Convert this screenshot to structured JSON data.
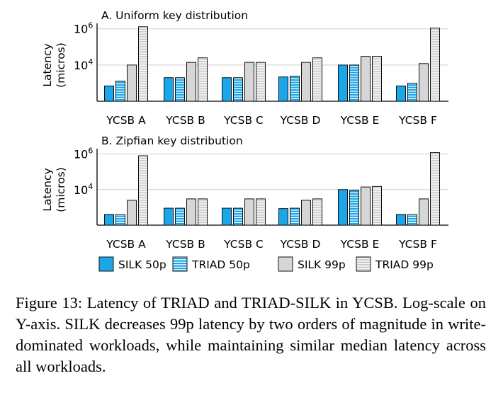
{
  "chart_data": [
    {
      "type": "bar",
      "title": "A. Uniform key distribution",
      "ylabel": "Latency (micros)",
      "ylabel_lines": [
        "Latency",
        "(micros)"
      ],
      "yscale": "log",
      "ylim": [
        100,
        2000000
      ],
      "yticks": [
        {
          "value": 10000,
          "base": "10",
          "exp": "4"
        },
        {
          "value": 1000000,
          "base": "10",
          "exp": "6"
        }
      ],
      "grid": true,
      "categories": [
        "YCSB A",
        "YCSB B",
        "YCSB C",
        "YCSB D",
        "YCSB E",
        "YCSB F"
      ],
      "series": [
        {
          "name": "SILK 50p",
          "values": [
            700,
            2000,
            2000,
            2200,
            10000,
            700
          ]
        },
        {
          "name": "TRIAD 50p",
          "values": [
            1300,
            2000,
            2000,
            2400,
            10000,
            1000
          ]
        },
        {
          "name": "SILK 99p",
          "values": [
            10000,
            14000,
            14000,
            14000,
            30000,
            12000
          ]
        },
        {
          "name": "TRIAD 99p",
          "values": [
            1300000,
            25000,
            14000,
            25000,
            30000,
            1100000
          ]
        }
      ]
    },
    {
      "type": "bar",
      "title": "B. Zipfian key distribution",
      "ylabel": "Latency (micros)",
      "ylabel_lines": [
        "Latency",
        "(micros)"
      ],
      "yscale": "log",
      "ylim": [
        100,
        2000000
      ],
      "yticks": [
        {
          "value": 10000,
          "base": "10",
          "exp": "4"
        },
        {
          "value": 1000000,
          "base": "10",
          "exp": "6"
        }
      ],
      "grid": true,
      "categories": [
        "YCSB A",
        "YCSB B",
        "YCSB C",
        "YCSB D",
        "YCSB E",
        "YCSB F"
      ],
      "series": [
        {
          "name": "SILK 50p",
          "values": [
            400,
            900,
            900,
            850,
            10000,
            400
          ]
        },
        {
          "name": "TRIAD 50p",
          "values": [
            400,
            900,
            900,
            900,
            9000,
            400
          ]
        },
        {
          "name": "SILK 99p",
          "values": [
            2500,
            3000,
            3000,
            2500,
            14000,
            3000
          ]
        },
        {
          "name": "TRIAD 99p",
          "values": [
            800000,
            3000,
            3000,
            3000,
            15000,
            1200000
          ]
        }
      ]
    }
  ],
  "legend": [
    {
      "label": "SILK 50p",
      "style": "solid",
      "fill": "#1aa6e8"
    },
    {
      "label": "TRIAD 50p",
      "style": "hstripe",
      "fill": "#1aa6e8"
    },
    {
      "label": "SILK 99p",
      "style": "solid",
      "fill": "#d6d6d6"
    },
    {
      "label": "TRIAD 99p",
      "style": "hstripe",
      "fill": "#d6d6d6"
    }
  ],
  "colors": {
    "silk50": "#1aa6e8",
    "silk99": "#d6d6d6",
    "grid": "#cfcfcf",
    "axis": "#000000"
  },
  "caption": "Figure 13: Latency of TRIAD and TRIAD-SILK in YCSB. Log-scale on Y-axis. SILK decreases 99p latency by two orders of magnitude in write-dominated workloads, while maintaining similar median latency across all workloads."
}
